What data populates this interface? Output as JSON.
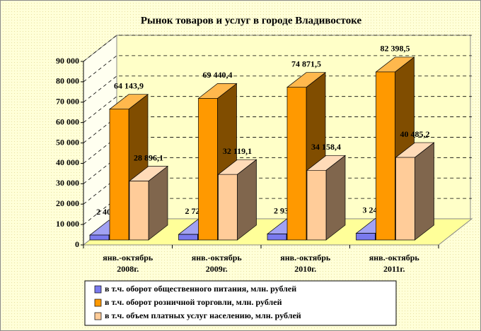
{
  "chart_data": {
    "type": "bar3d",
    "title": "Рынок товаров и услуг в городе Владивостоке",
    "categories": [
      "янв.-октябрь\n2008г.",
      "янв.-октябрь\n2009г.",
      "янв.-октябрь\n2010г.",
      "янв.-октябрь\n2011г."
    ],
    "series": [
      {
        "name": "в т.ч. оборот общественного питания, млн. рублей",
        "color": "#7a7aee",
        "values": [
          2405.2,
          2720.4,
          2932.8,
          3242.3
        ],
        "value_labels": [
          "2 405,2",
          "2 720,4",
          "2 932,8",
          "3 242,3"
        ]
      },
      {
        "name": "в т.ч. оборот розничной торговли, млн. рублей",
        "color": "#ff9900",
        "values": [
          64143.9,
          69440.4,
          74871.5,
          82398.5
        ],
        "value_labels": [
          "64 143,9",
          "69 440,4",
          "74 871,5",
          "82 398,5"
        ]
      },
      {
        "name": "в т.ч. объем платных услуг населению, млн. рублей",
        "color": "#ffcc99",
        "values": [
          28896.1,
          32119.1,
          34158.4,
          40485.2
        ],
        "value_labels": [
          "28 896,1",
          "32 119,1",
          "34 158,4",
          "40 485,2"
        ]
      }
    ],
    "ylim": [
      0,
      90000
    ],
    "yticks": [
      0,
      {
        "value": 10000,
        "label": "10 000"
      },
      {
        "value": 20000,
        "label": "20 000"
      },
      {
        "value": 30000,
        "label": "30 000"
      },
      {
        "value": 40000,
        "label": "40 000"
      },
      {
        "value": 50000,
        "label": "50 000"
      },
      {
        "value": 60000,
        "label": "60 000"
      },
      {
        "value": 70000,
        "label": "70 000"
      },
      {
        "value": 80000,
        "label": "80 000"
      },
      {
        "value": 90000,
        "label": "90 000"
      }
    ],
    "grid": true,
    "legend": "bottom"
  }
}
